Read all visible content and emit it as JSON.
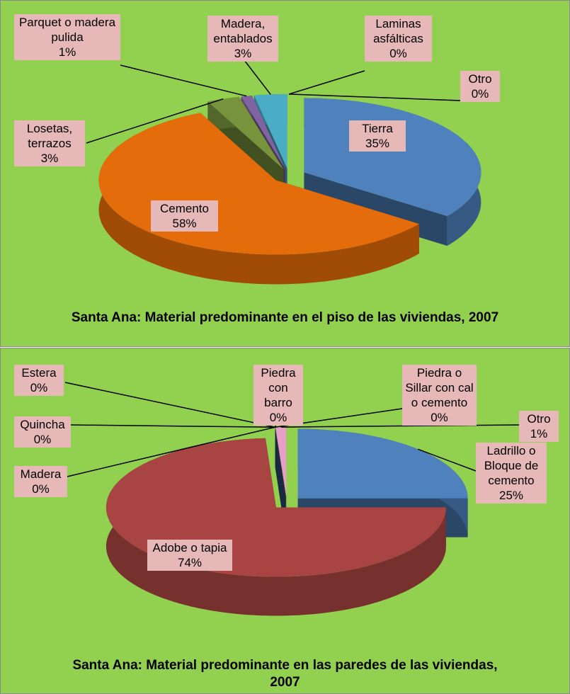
{
  "chart_data": [
    {
      "type": "pie3d",
      "title": "Santa Ana: Material predominante en el piso de las viviendas, 2007",
      "categories": [
        "Tierra",
        "Cemento",
        "Losetas, terrazos",
        "Parquet o madera pulida",
        "Madera, entablados",
        "Laminas asfálticas",
        "Otro"
      ],
      "values": [
        35,
        58,
        3,
        1,
        3,
        0,
        0
      ],
      "value_labels": [
        "35%",
        "58%",
        "3%",
        "1%",
        "3%",
        "0%",
        "0%"
      ],
      "colors": [
        "#4f81bd",
        "#e46c0a",
        "#77933c",
        "#8064a2",
        "#4bacc6",
        "#f79646",
        "#e6a0c4"
      ]
    },
    {
      "type": "pie3d",
      "title": "Santa Ana: Material predominante en las paredes de las viviendas, 2007",
      "categories": [
        "Ladrillo o Bloque de cemento",
        "Adobe o tapia",
        "Madera",
        "Quincha",
        "Estera",
        "Piedra con barro",
        "Piedra o Sillar con cal o cemento",
        "Otro"
      ],
      "values": [
        25,
        74,
        0,
        0,
        0,
        0,
        0,
        1
      ],
      "value_labels": [
        "25%",
        "74%",
        "0%",
        "0%",
        "0%",
        "0%",
        "0%",
        "1%"
      ],
      "colors": [
        "#4f81bd",
        "#a84442",
        "#77933c",
        "#8064a2",
        "#4bacc6",
        "#f79646",
        "#2c4d75",
        "#e6a0c4"
      ]
    }
  ]
}
